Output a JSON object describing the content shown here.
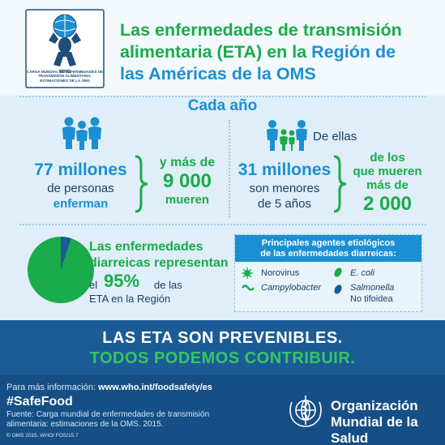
{
  "header": {
    "logo_caption": "CARGA MUNDIAL DE ENFERMEDADES DE TRANSMISIÓN ALIMENTARIA: ESTIMACIONES DE LA OMS",
    "title_part1": "Las enfermedades de transmisión alimentaria (ETA) en la ",
    "title_part2": "Región de las Américas de la OMS",
    "title_line1": "Las enfermedades de transmisión",
    "title_line2a": "alimentaria (ETA) en la ",
    "title_line2b": "Región de",
    "title_line3": "las Américas de la OMS"
  },
  "stats": {
    "heading": "Cada año",
    "left": {
      "big": "77 millones",
      "line2": "de personas",
      "line3": "enferman",
      "deaths_line1": "y más de",
      "deaths_number": "9 000",
      "deaths_line3": "mueren"
    },
    "right": {
      "de_ellas": "De ellas",
      "big": "31 millones",
      "line2": "son menores",
      "line3": "de 5 años",
      "deaths_line1": "de los",
      "deaths_line2": "que mueren",
      "deaths_line3": "más de",
      "deaths_number": "2 000"
    }
  },
  "diarrhea": {
    "line1": "Las enfermedades",
    "line2": "diarreicas representan",
    "el": "el",
    "percent": "95%",
    "de_las": "de las",
    "line4": "ETA en la Región",
    "pie_share": 0.05
  },
  "agents": {
    "heading_line1": "Principales agentes etiológicos",
    "heading_line2": "de las enfermedades diarreicas:",
    "items": [
      "Norovirus",
      "Campylobacter",
      "E. coli",
      "Salmonella",
      "No tifoidea"
    ]
  },
  "banner": {
    "line1": "LAS ETA SON PREVENIBLES.",
    "line2": "TODOS PODEMOS CONTRIBUIR."
  },
  "footer": {
    "info_label": "Para más información: ",
    "info_url": "www.who.int/foodsafety/es",
    "hashtag": "#SafeFood",
    "source_line1": "Fuente: Carga mundial de enfermedades de transmisión",
    "source_line2": "alimentaria: estimaciones  de la OMS. 2015.",
    "copyright": "© OMS 2015. WHO/ FOS/15.7",
    "org_line1": "Organización",
    "org_line2": "Mundial de la Salud"
  },
  "colors": {
    "green": "#1aab4a",
    "blue": "#1b8fd2",
    "navy": "#1b5c97",
    "footer": "#154f86",
    "light_bg": "#dfeef8"
  }
}
